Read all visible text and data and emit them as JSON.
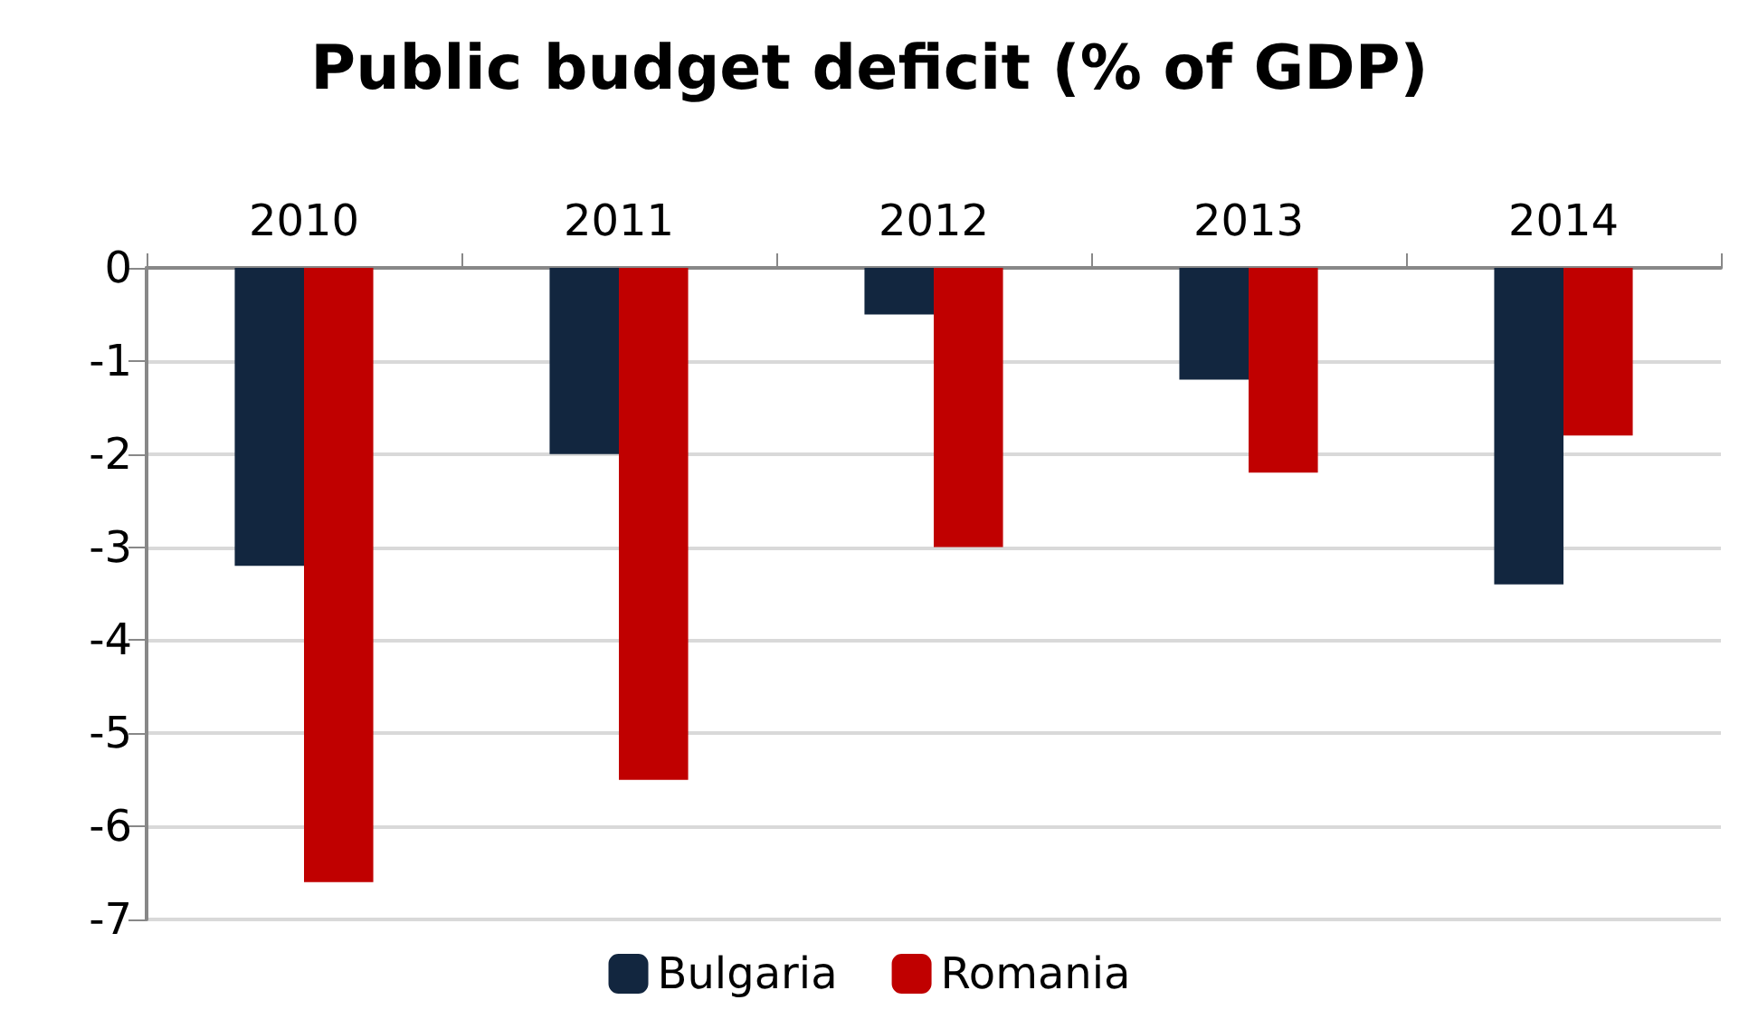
{
  "chart_data": {
    "type": "bar",
    "title": "Public budget deficit (% of GDP)",
    "categories": [
      "2010",
      "2011",
      "2012",
      "2013",
      "2014"
    ],
    "series": [
      {
        "name": "Bulgaria",
        "color": "#12263f",
        "values": [
          -3.2,
          -2.0,
          -0.5,
          -1.2,
          -3.4
        ]
      },
      {
        "name": "Romania",
        "color": "#c00000",
        "values": [
          -6.6,
          -5.5,
          -3.0,
          -2.2,
          -1.8
        ]
      }
    ],
    "ylim": [
      -7,
      0
    ],
    "yticks": [
      -7,
      -6,
      -5,
      -4,
      -3,
      -2,
      -1,
      0
    ],
    "grid": "y",
    "legend": "bottom"
  }
}
